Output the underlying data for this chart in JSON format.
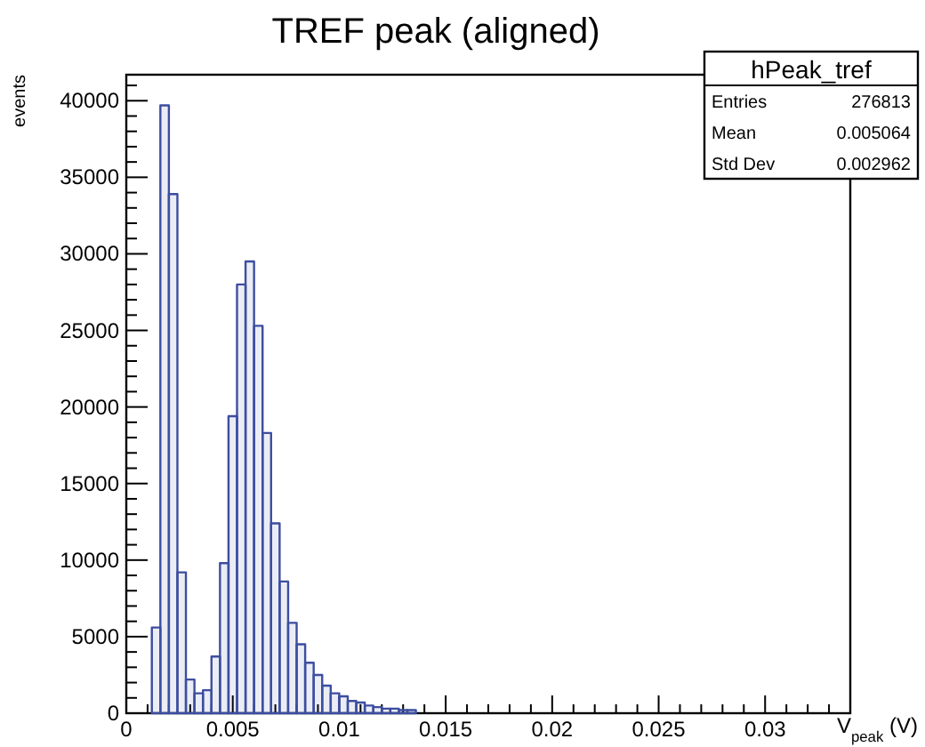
{
  "chart_data": {
    "type": "histogram",
    "title": "TREF peak (aligned)",
    "xlabel": "V$_{peak}$ (V)",
    "ylabel": "events",
    "bins": [
      0.0012,
      0.0016,
      0.002,
      0.0024,
      0.0028,
      0.0032,
      0.0036,
      0.004,
      0.0044,
      0.0048,
      0.0052,
      0.0056,
      0.006,
      0.0064,
      0.0068,
      0.0072,
      0.0076,
      0.008,
      0.0084,
      0.0088,
      0.0092,
      0.0096,
      0.01,
      0.0104,
      0.0108,
      0.0112,
      0.0116,
      0.012,
      0.0124,
      0.0128,
      0.0132,
      0.0136
    ],
    "values": [
      5600,
      39700,
      33900,
      9200,
      2200,
      1300,
      1500,
      3700,
      9800,
      19400,
      28000,
      29500,
      25300,
      18300,
      12400,
      8600,
      5900,
      4500,
      3300,
      2500,
      1800,
      1300,
      1100,
      800,
      700,
      500,
      400,
      300,
      300,
      200,
      200
    ],
    "color": "#3d4ea0",
    "xlim": [
      0,
      0.034
    ],
    "ylim": [
      0,
      41700
    ],
    "xticks": [
      0,
      {
        "value": 0.001,
        "label": null
      },
      {
        "value": 0.002,
        "label": null
      },
      {
        "value": 0.003,
        "label": null
      },
      {
        "value": 0.004,
        "label": null
      },
      0.005,
      {
        "value": 0.006,
        "label": null
      },
      {
        "value": 0.007,
        "label": null
      },
      {
        "value": 0.008,
        "label": null
      },
      {
        "value": 0.009,
        "label": null
      },
      0.01,
      {
        "value": 0.011,
        "label": null
      },
      {
        "value": 0.012,
        "label": null
      },
      {
        "value": 0.013,
        "label": null
      },
      {
        "value": 0.014,
        "label": null
      },
      0.015,
      {
        "value": 0.016,
        "label": null
      },
      {
        "value": 0.017,
        "label": null
      },
      {
        "value": 0.018,
        "label": null
      },
      {
        "value": 0.019,
        "label": null
      },
      0.02,
      {
        "value": 0.021,
        "label": null
      },
      {
        "value": 0.022,
        "label": null
      },
      {
        "value": 0.023,
        "label": null
      },
      {
        "value": 0.024,
        "label": null
      },
      0.025,
      {
        "value": 0.026,
        "label": null
      },
      {
        "value": 0.027,
        "label": null
      },
      {
        "value": 0.028,
        "label": null
      },
      {
        "value": 0.029,
        "label": null
      },
      0.03,
      {
        "value": 0.031,
        "label": null
      },
      {
        "value": 0.032,
        "label": null
      },
      {
        "value": 0.033,
        "label": null
      }
    ],
    "yticks": [
      0,
      {
        "value": 1000,
        "label": null
      },
      {
        "value": 2000,
        "label": null
      },
      {
        "value": 3000,
        "label": null
      },
      {
        "value": 4000,
        "label": null
      },
      5000,
      {
        "value": 6000,
        "label": null
      },
      {
        "value": 7000,
        "label": null
      },
      {
        "value": 8000,
        "label": null
      },
      {
        "value": 9000,
        "label": null
      },
      10000,
      {
        "value": 11000,
        "label": null
      },
      {
        "value": 12000,
        "label": null
      },
      {
        "value": 13000,
        "label": null
      },
      {
        "value": 14000,
        "label": null
      },
      15000,
      {
        "value": 16000,
        "label": null
      },
      {
        "value": 17000,
        "label": null
      },
      {
        "value": 18000,
        "label": null
      },
      {
        "value": 19000,
        "label": null
      },
      20000,
      {
        "value": 21000,
        "label": null
      },
      {
        "value": 22000,
        "label": null
      },
      {
        "value": 23000,
        "label": null
      },
      {
        "value": 24000,
        "label": null
      },
      25000,
      {
        "value": 26000,
        "label": null
      },
      {
        "value": 27000,
        "label": null
      },
      {
        "value": 28000,
        "label": null
      },
      {
        "value": 29000,
        "label": null
      },
      30000,
      {
        "value": 31000,
        "label": null
      },
      {
        "value": 32000,
        "label": null
      },
      {
        "value": 33000,
        "label": null
      },
      {
        "value": 34000,
        "label": null
      },
      35000,
      {
        "value": 36000,
        "label": null
      },
      {
        "value": 37000,
        "label": null
      },
      {
        "value": 38000,
        "label": null
      },
      {
        "value": 39000,
        "label": null
      },
      40000,
      {
        "value": 41000,
        "label": null
      }
    ],
    "annotations": [
      "hPeak_tref",
      "Entries 276813",
      "Mean 0.005064",
      "Std Dev 0.002962"
    ]
  }
}
